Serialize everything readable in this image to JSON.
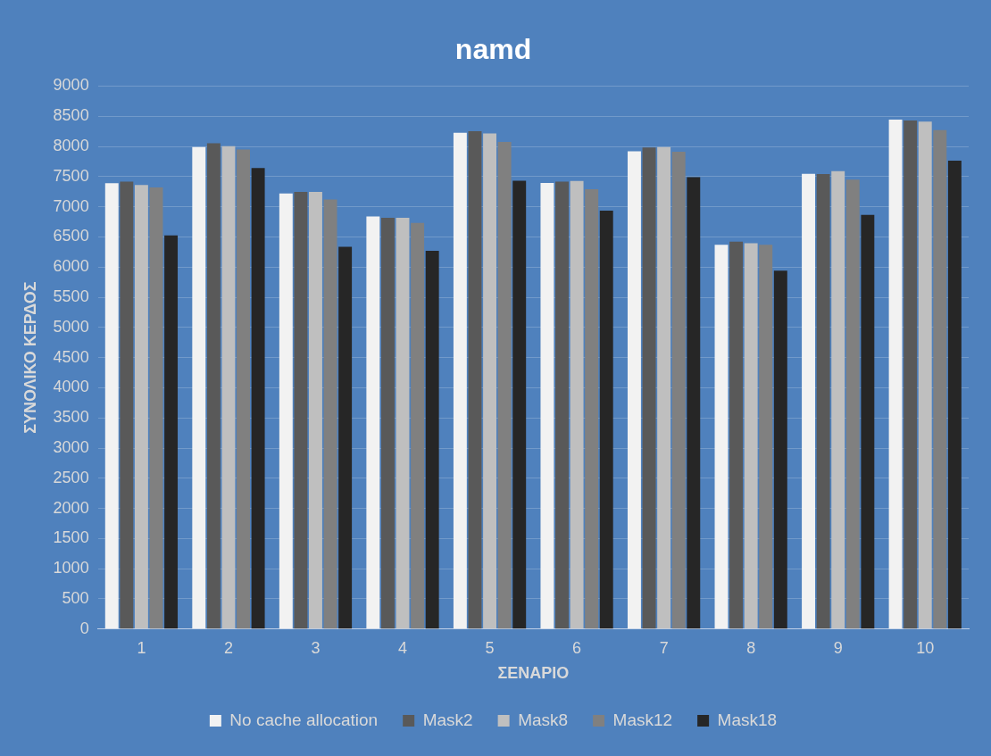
{
  "chart_data": {
    "type": "bar",
    "title": "namd",
    "xlabel": "ΣΕΝΑΡΙΟ",
    "ylabel": "ΣΥΝΟΛΙΚΟ ΚΕΡΔΟΣ",
    "categories": [
      "1",
      "2",
      "3",
      "4",
      "5",
      "6",
      "7",
      "8",
      "9",
      "10"
    ],
    "series": [
      {
        "name": "No cache allocation",
        "color": "#f2f2f2",
        "values": [
          7390,
          7990,
          7220,
          6840,
          8225,
          7395,
          7920,
          6370,
          7545,
          8445
        ]
      },
      {
        "name": "Mask2",
        "color": "#595959",
        "values": [
          7415,
          8050,
          7245,
          6815,
          8250,
          7415,
          7980,
          6420,
          7540,
          8430
        ]
      },
      {
        "name": "Mask8",
        "color": "#bfbfbf",
        "values": [
          7360,
          8005,
          7245,
          6815,
          8215,
          7425,
          7990,
          6395,
          7590,
          8410
        ]
      },
      {
        "name": "Mask12",
        "color": "#808080",
        "values": [
          7320,
          7950,
          7120,
          6730,
          8075,
          7290,
          7910,
          6370,
          7450,
          8270
        ]
      },
      {
        "name": "Mask18",
        "color": "#262626",
        "values": [
          6525,
          7640,
          6335,
          6270,
          7430,
          6935,
          7490,
          5940,
          6865,
          7765
        ]
      }
    ],
    "ylim": [
      0,
      9000
    ],
    "yticks": [
      0,
      500,
      1000,
      1500,
      2000,
      2500,
      3000,
      3500,
      4000,
      4500,
      5000,
      5500,
      6000,
      6500,
      7000,
      7500,
      8000,
      8500,
      9000
    ],
    "grid": "y",
    "legend": "bottom"
  }
}
